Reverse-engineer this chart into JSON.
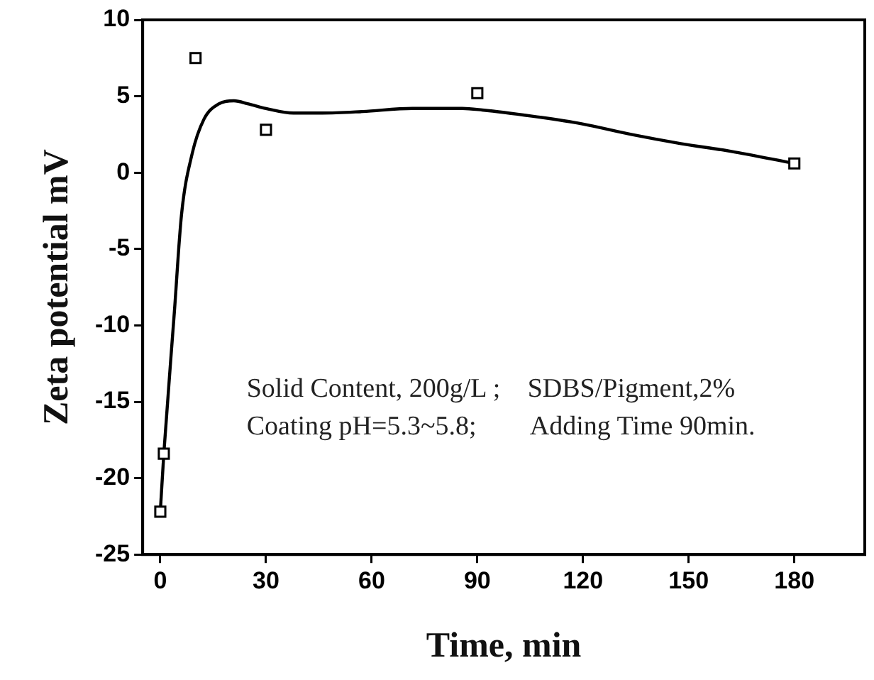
{
  "chart_data": {
    "type": "scatter",
    "xlabel": "Time, min",
    "ylabel": "Zeta potential mV",
    "xlim": [
      -5,
      200
    ],
    "xticks": [
      0,
      30,
      60,
      90,
      120,
      150,
      180
    ],
    "ylim": [
      -25,
      10
    ],
    "yticks": [
      -25,
      -20,
      -15,
      -10,
      -5,
      0,
      5,
      10
    ],
    "grid": false,
    "legend": false,
    "marker": "square",
    "series": [
      {
        "color": "#000000",
        "x": [
          0,
          1,
          10,
          30,
          90,
          180
        ],
        "values": [
          -22.2,
          -18.4,
          7.5,
          2.8,
          5.2,
          0.6
        ]
      },
      {
        "type": "line",
        "color": "#000000",
        "marker": "none",
        "x": [
          0,
          1,
          4,
          6,
          9,
          12.4,
          16.6,
          20.9,
          25,
          30,
          37.8,
          46,
          57.5,
          71.6,
          85.7,
          91.4,
          105.5,
          119.6,
          133.7,
          147.8,
          161.9,
          180
        ],
        "values": [
          -22.2,
          -18.4,
          -9.1,
          -2.8,
          1.2,
          3.5,
          4.5,
          4.7,
          4.5,
          4.2,
          3.9,
          3.9,
          4,
          4.2,
          4.2,
          4.1,
          3.7,
          3.2,
          2.5,
          1.9,
          1.4,
          0.6
        ]
      }
    ],
    "annotations": [
      "Solid Content, 200g/L ;",
      "SDBS/Pigment,2%",
      "Coating pH=5.3~5.8;",
      "Adding Time 90min."
    ]
  }
}
